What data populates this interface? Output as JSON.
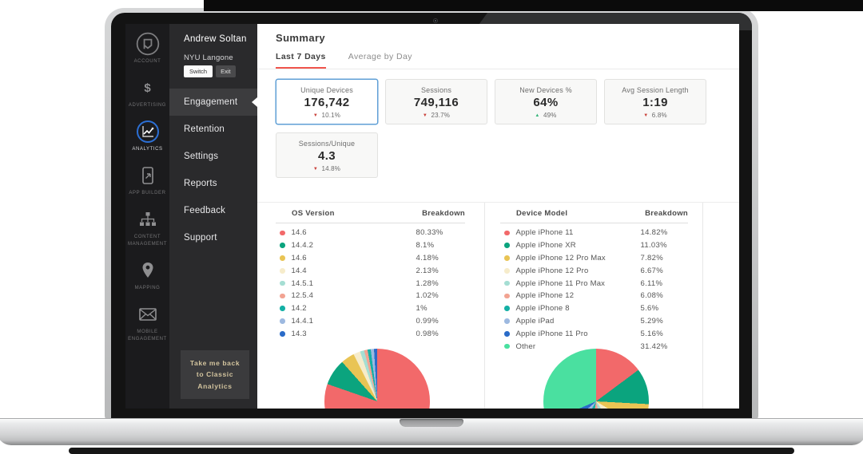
{
  "icon_rail": {
    "items": [
      {
        "label": "ACCOUNT",
        "icon": "account-logo-icon",
        "active": false
      },
      {
        "label": "ADVERTISING",
        "icon": "dollar-icon",
        "active": false
      },
      {
        "label": "ANALYTICS",
        "icon": "analytics-chart-icon",
        "active": true
      },
      {
        "label": "APP BUILDER",
        "icon": "app-builder-phone-icon",
        "active": false
      },
      {
        "label": "CONTENT MANAGEMENT",
        "icon": "content-management-sitemap-icon",
        "active": false
      },
      {
        "label": "MAPPING",
        "icon": "map-pin-icon",
        "active": false
      },
      {
        "label": "MOBILE ENGAGEMENT",
        "icon": "envelope-icon",
        "active": false
      }
    ]
  },
  "sidebar": {
    "user_name": "Andrew Soltan",
    "org_name": "NYU Langone",
    "switch_label": "Switch",
    "exit_label": "Exit",
    "items": [
      {
        "label": "Engagement",
        "active": true
      },
      {
        "label": "Retention",
        "active": false
      },
      {
        "label": "Settings",
        "active": false
      },
      {
        "label": "Reports",
        "active": false
      },
      {
        "label": "Feedback",
        "active": false
      },
      {
        "label": "Support",
        "active": false
      }
    ],
    "back_link": "Take me back to Classic Analytics"
  },
  "summary": {
    "title": "Summary",
    "tabs": [
      {
        "label": "Last 7 Days",
        "active": true
      },
      {
        "label": "Average by Day",
        "active": false
      }
    ],
    "cards": [
      {
        "label": "Unique Devices",
        "value": "176,742",
        "delta": "10.1%",
        "direction": "down",
        "selected": true
      },
      {
        "label": "Sessions",
        "value": "749,116",
        "delta": "23.7%",
        "direction": "down",
        "selected": false
      },
      {
        "label": "New Devices %",
        "value": "64%",
        "delta": "49%",
        "direction": "up",
        "selected": false
      },
      {
        "label": "Avg Session Length",
        "value": "1:19",
        "delta": "6.8%",
        "direction": "down",
        "selected": false
      },
      {
        "label": "Sessions/Unique",
        "value": "4.3",
        "delta": "14.8%",
        "direction": "down",
        "selected": false
      }
    ]
  },
  "colors": {
    "tab_underline": "#f0544c",
    "selected_card_border": "#5f9fd6",
    "delta_down": "#c9413a",
    "delta_up": "#35b579",
    "analytics_ring": "#2c6fd4",
    "back_link_text": "#d3c49e"
  },
  "chart_data": [
    {
      "type": "pie",
      "title": "OS Version",
      "columns": [
        "OS Version",
        "Breakdown"
      ],
      "labels": [
        "14.6",
        "14.4.2",
        "14.6",
        "14.4",
        "14.5.1",
        "12.5.4",
        "14.2",
        "14.4.1",
        "14.3"
      ],
      "values": [
        80.33,
        8.1,
        4.18,
        2.13,
        1.28,
        1.02,
        1,
        0.99,
        0.98
      ],
      "display_values": [
        "80.33%",
        "8.1%",
        "4.18%",
        "2.13%",
        "1.28%",
        "1.02%",
        "1%",
        "0.99%",
        "0.98%"
      ],
      "colors": [
        "#f2696a",
        "#0ba47e",
        "#e9c454",
        "#f6eccb",
        "#a5ded3",
        "#f2a392",
        "#14b0a5",
        "#9db9e0",
        "#2a6bc8"
      ],
      "legend_position": "table-left",
      "start_angle": 0
    },
    {
      "type": "pie",
      "title": "Device Model",
      "columns": [
        "Device Model",
        "Breakdown"
      ],
      "labels": [
        "Apple iPhone 11",
        "Apple iPhone XR",
        "Apple iPhone 12 Pro Max",
        "Apple iPhone 12 Pro",
        "Apple iPhone 11 Pro Max",
        "Apple iPhone 12",
        "Apple iPhone 8",
        "Apple iPad",
        "Apple iPhone 11 Pro",
        "Other"
      ],
      "values": [
        14.82,
        11.03,
        7.82,
        6.67,
        6.11,
        6.08,
        5.6,
        5.29,
        5.16,
        31.42
      ],
      "display_values": [
        "14.82%",
        "11.03%",
        "7.82%",
        "6.67%",
        "6.11%",
        "6.08%",
        "5.6%",
        "5.29%",
        "5.16%",
        "31.42%"
      ],
      "colors": [
        "#f2696a",
        "#0ba47e",
        "#e9c454",
        "#f6eccb",
        "#a5ded3",
        "#f2a392",
        "#14b0a5",
        "#9db9e0",
        "#2a6bc8",
        "#4ae0a0"
      ],
      "legend_position": "table-left",
      "start_angle": 0
    }
  ]
}
